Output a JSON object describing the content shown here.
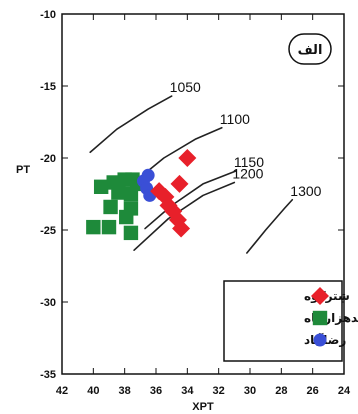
{
  "chart_data": {
    "type": "scatter",
    "xlabel": "XPT",
    "ylabel": "PT",
    "xlim": [
      42,
      24
    ],
    "ylim": [
      -35,
      -10
    ],
    "x_ticks": [
      "42",
      "40",
      "38",
      "36",
      "34",
      "32",
      "30",
      "28",
      "26",
      "24"
    ],
    "y_ticks": [
      "-10",
      "-15",
      "-20",
      "-25",
      "-30",
      "-35"
    ],
    "panel_label": "الف",
    "isotherms": [
      {
        "label": "1050",
        "points": [
          [
            40.2,
            -19.6
          ],
          [
            38.5,
            -18.0
          ],
          [
            36.5,
            -16.6
          ],
          [
            35.0,
            -15.7
          ]
        ]
      },
      {
        "label": "1100",
        "points": [
          [
            37.3,
            -21.6
          ],
          [
            35.5,
            -20.0
          ],
          [
            33.5,
            -18.7
          ],
          [
            31.8,
            -17.9
          ]
        ]
      },
      {
        "label": "1150",
        "points": [
          [
            36.7,
            -24.9
          ],
          [
            35.0,
            -23.3
          ],
          [
            33.0,
            -21.8
          ],
          [
            30.9,
            -20.9
          ]
        ]
      },
      {
        "label": "1200",
        "points": [
          [
            37.4,
            -26.4
          ],
          [
            35.2,
            -24.2
          ],
          [
            33.0,
            -22.6
          ],
          [
            31.0,
            -21.7
          ]
        ]
      },
      {
        "label": "1300",
        "points": [
          [
            30.2,
            -26.6
          ],
          [
            29.0,
            -25.0
          ],
          [
            27.8,
            -23.5
          ],
          [
            27.3,
            -22.9
          ]
        ]
      }
    ],
    "series": [
      {
        "name": "شترکوه",
        "marker": "diamond",
        "color": "#e8202a",
        "points": [
          [
            34.0,
            -20.0
          ],
          [
            34.5,
            -21.8
          ],
          [
            35.8,
            -22.3
          ],
          [
            35.4,
            -22.7
          ],
          [
            35.2,
            -23.3
          ],
          [
            34.9,
            -23.7
          ],
          [
            34.6,
            -24.3
          ],
          [
            34.4,
            -24.9
          ]
        ]
      },
      {
        "name": "بندهزارچاه",
        "marker": "square",
        "color": "#1e8a3a",
        "points": [
          [
            39.5,
            -22.0
          ],
          [
            38.7,
            -21.7
          ],
          [
            38.0,
            -21.5
          ],
          [
            37.5,
            -21.5
          ],
          [
            37.2,
            -21.8
          ],
          [
            38.4,
            -22.4
          ],
          [
            37.6,
            -22.5
          ],
          [
            38.9,
            -23.4
          ],
          [
            37.6,
            -23.5
          ],
          [
            37.9,
            -24.1
          ],
          [
            40.0,
            -24.8
          ],
          [
            39.0,
            -24.8
          ],
          [
            37.6,
            -25.2
          ]
        ]
      },
      {
        "name": "رضاآباد",
        "marker": "circle",
        "color": "#3a4fd6",
        "points": [
          [
            36.5,
            -21.2
          ],
          [
            36.8,
            -21.6
          ],
          [
            36.6,
            -22.1
          ],
          [
            36.4,
            -22.6
          ]
        ]
      }
    ],
    "legend_position": "bottom-right"
  }
}
